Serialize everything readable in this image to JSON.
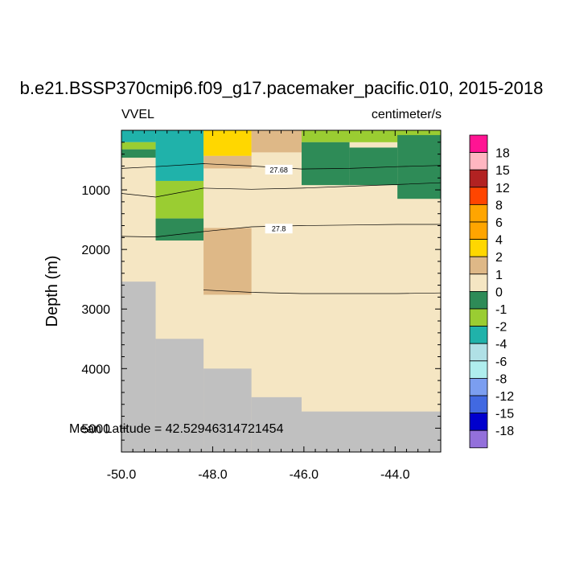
{
  "chart_data": {
    "type": "heatmap",
    "title": "b.e21.BSSP370cmip6.f09_g17.pacemaker_pacific.010, 2015-2018",
    "left_string": "VVEL",
    "right_string": "centimeter/s",
    "ylabel": "Depth (m)",
    "xlabel": "",
    "xlim": [
      -50.0,
      -43.0
    ],
    "ylim": [
      5400,
      0
    ],
    "y_reversed": true,
    "x_ticks": [
      -50.0,
      -48.0,
      -46.0,
      -44.0
    ],
    "x_tick_labels": [
      "-50.0",
      "-48.0",
      "-46.0",
      "-44.0"
    ],
    "y_ticks": [
      1000,
      2000,
      3000,
      4000,
      5000
    ],
    "y_tick_labels": [
      "1000",
      "2000",
      "3000",
      "4000",
      "5000"
    ],
    "annotation": "Mean Latitude = 42.52946314721454",
    "colorbar": {
      "placement": "right",
      "colors": [
        "#ff1493",
        "#ffb6c1",
        "#b22222",
        "#ff4500",
        "#ffa500",
        "#ffa500",
        "#ffd700",
        "#deb887",
        "#f5e6c3",
        "#2e8b57",
        "#9acd32",
        "#20b2aa",
        "#b0e0e6",
        "#afeeee",
        "#7b9ef0",
        "#4169e1",
        "#0000cd",
        "#9370db"
      ],
      "labels": [
        "18",
        "15",
        "12",
        "8",
        "6",
        "4",
        "2",
        "1",
        "0",
        "-1",
        "-2",
        "-4",
        "-6",
        "-8",
        "-12",
        "-15",
        "-18"
      ]
    },
    "cells": [
      {
        "x": [
          -50.0,
          -49.25
        ],
        "y": [
          0,
          200
        ],
        "value": "-2 to -4",
        "color": "#20b2aa"
      },
      {
        "x": [
          -50.0,
          -49.25
        ],
        "y": [
          200,
          320
        ],
        "value": "-1 to -2",
        "color": "#9acd32"
      },
      {
        "x": [
          -50.0,
          -49.25
        ],
        "y": [
          320,
          460
        ],
        "value": "0 to -1",
        "color": "#2e8b57"
      },
      {
        "x": [
          -49.25,
          -48.2
        ],
        "y": [
          0,
          850
        ],
        "value": "-2 to -4",
        "color": "#20b2aa"
      },
      {
        "x": [
          -49.25,
          -48.2
        ],
        "y": [
          850,
          1480
        ],
        "value": "-1 to -2",
        "color": "#9acd32"
      },
      {
        "x": [
          -49.25,
          -48.2
        ],
        "y": [
          1480,
          1850
        ],
        "value": "0 to -1",
        "color": "#2e8b57"
      },
      {
        "x": [
          -48.2,
          -47.15
        ],
        "y": [
          0,
          430
        ],
        "value": "2 to 4",
        "color": "#ffd700"
      },
      {
        "x": [
          -48.2,
          -47.15
        ],
        "y": [
          430,
          640
        ],
        "value": "1 to 2",
        "color": "#deb887"
      },
      {
        "x": [
          -47.15,
          -46.05
        ],
        "y": [
          0,
          370
        ],
        "value": "1 to 2",
        "color": "#deb887"
      },
      {
        "x": [
          -48.2,
          -47.15
        ],
        "y": [
          1640,
          2760
        ],
        "value": "1 to 2",
        "color": "#deb887"
      },
      {
        "x": [
          -46.05,
          -43.0
        ],
        "y": [
          0,
          200
        ],
        "value": "-1 to -2",
        "color": "#9acd32"
      },
      {
        "x": [
          -46.05,
          -45.0
        ],
        "y": [
          200,
          920
        ],
        "value": "0 to -1",
        "color": "#2e8b57"
      },
      {
        "x": [
          -45.0,
          -43.95
        ],
        "y": [
          290,
          920
        ],
        "value": "0 to -1",
        "color": "#2e8b57"
      },
      {
        "x": [
          -43.95,
          -43.0
        ],
        "y": [
          80,
          1150
        ],
        "value": "0 to -1",
        "color": "#2e8b57"
      }
    ],
    "bathymetry": [
      {
        "x": [
          -50.0,
          -49.25
        ],
        "depth": 2540
      },
      {
        "x": [
          -49.25,
          -48.2
        ],
        "depth": 3500
      },
      {
        "x": [
          -48.2,
          -47.15
        ],
        "depth": 4000
      },
      {
        "x": [
          -47.15,
          -46.05
        ],
        "depth": 4480
      },
      {
        "x": [
          -46.05,
          -43.0
        ],
        "depth": 4720
      }
    ],
    "contours": [
      {
        "label": "27.68",
        "label_at": [
          -46.55,
          660
        ],
        "points": [
          [
            -50.0,
            640
          ],
          [
            -49.25,
            610
          ],
          [
            -48.2,
            560
          ],
          [
            -47.15,
            600
          ],
          [
            -46.05,
            650
          ],
          [
            -45.0,
            640
          ],
          [
            -43.95,
            610
          ],
          [
            -43.0,
            590
          ]
        ]
      },
      {
        "label": "",
        "points": [
          [
            -50.0,
            1060
          ],
          [
            -49.25,
            1120
          ],
          [
            -48.2,
            970
          ],
          [
            -47.15,
            990
          ],
          [
            -46.05,
            970
          ],
          [
            -45.0,
            940
          ],
          [
            -43.95,
            910
          ],
          [
            -43.0,
            880
          ]
        ]
      },
      {
        "label": "27.8",
        "label_at": [
          -46.55,
          1650
        ],
        "points": [
          [
            -50.0,
            1780
          ],
          [
            -49.25,
            1790
          ],
          [
            -48.2,
            1700
          ],
          [
            -47.15,
            1620
          ],
          [
            -46.05,
            1600
          ],
          [
            -45.0,
            1590
          ],
          [
            -43.95,
            1580
          ],
          [
            -43.0,
            1580
          ]
        ]
      },
      {
        "label": "",
        "points": [
          [
            -48.2,
            2680
          ],
          [
            -47.15,
            2720
          ],
          [
            -46.05,
            2740
          ],
          [
            -45.0,
            2740
          ],
          [
            -43.95,
            2740
          ],
          [
            -43.0,
            2730
          ]
        ]
      }
    ],
    "fill_color": "#f5e6c3",
    "land_color": "#c0c0c0"
  }
}
